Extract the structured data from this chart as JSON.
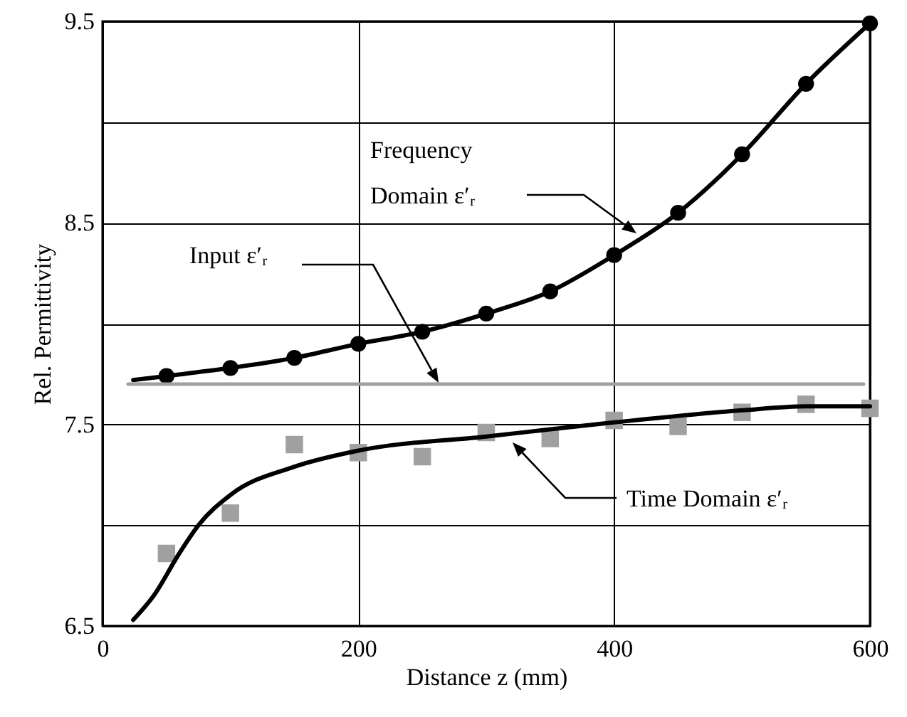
{
  "chart_data": {
    "type": "line",
    "xlabel": "Distance z (mm)",
    "ylabel": "Rel. Permittivity",
    "xlim": [
      0,
      600
    ],
    "xticks": [
      0,
      200,
      400,
      600
    ],
    "ylim": [
      6.5,
      9.5
    ],
    "yticks": [
      6.5,
      {
        "value": 7,
        "label": null
      },
      7.5,
      {
        "value": 8,
        "label": null
      },
      8.5,
      {
        "value": 9,
        "label": null
      },
      9.5
    ],
    "grid": true,
    "series": [
      {
        "type": "line",
        "color": "#000000",
        "line_style": "solid",
        "x": [
          24,
          50,
          100,
          150,
          200,
          250,
          300,
          350,
          400,
          450,
          500,
          550,
          600
        ],
        "values": [
          7.72,
          7.74,
          7.78,
          7.83,
          7.9,
          7.96,
          8.05,
          8.16,
          8.34,
          8.55,
          8.84,
          9.19,
          9.49
        ]
      },
      {
        "type": "scatter",
        "marker": "circle",
        "color": "#000000",
        "x": [
          50,
          100,
          150,
          200,
          250,
          300,
          350,
          400,
          450,
          500,
          550,
          600
        ],
        "values": [
          7.74,
          7.78,
          7.83,
          7.9,
          7.96,
          8.05,
          8.16,
          8.34,
          8.55,
          8.84,
          9.19,
          9.49
        ]
      },
      {
        "type": "line",
        "color": "#a0a0a0",
        "line_style": "solid",
        "x": [
          20,
          595
        ],
        "values": [
          7.7,
          7.7
        ]
      },
      {
        "type": "scatter",
        "marker": "square",
        "color": "#a0a0a0",
        "x": [
          50,
          100,
          150,
          200,
          250,
          300,
          350,
          400,
          450,
          500,
          550,
          600
        ],
        "values": [
          6.86,
          7.06,
          7.4,
          7.36,
          7.34,
          7.46,
          7.43,
          7.52,
          7.49,
          7.56,
          7.6,
          7.58
        ]
      },
      {
        "type": "line",
        "color": "#000000",
        "line_style": "solid",
        "x": [
          24,
          40,
          60,
          75,
          100,
          150,
          200,
          300,
          400,
          500,
          550,
          600
        ],
        "values": [
          6.53,
          6.65,
          6.86,
          7.0,
          7.15,
          7.29,
          7.37,
          7.44,
          7.51,
          7.57,
          7.59,
          7.59
        ]
      }
    ],
    "annotations": [
      "Frequency Domain ε′ᵣ",
      "Input ε′ᵣ",
      "Time Domain ε′ᵣ"
    ]
  }
}
